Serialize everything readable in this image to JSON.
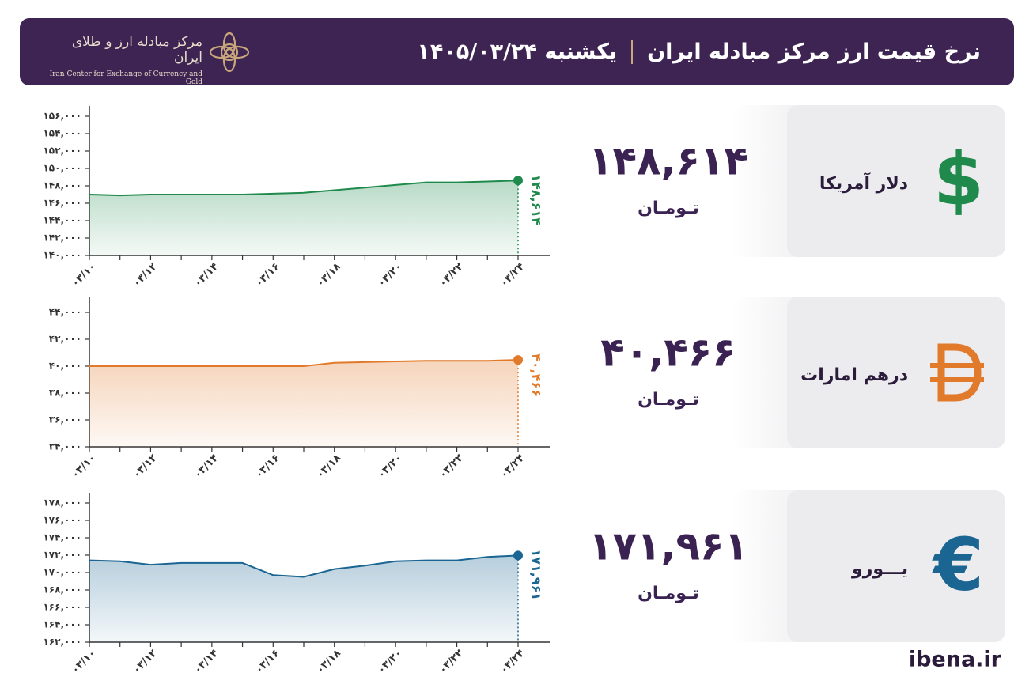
{
  "header": {
    "title": "نرخ قیمت ارز مرکز مبادله ایران",
    "date": "یکشنبه ۱۴۰۵/۰۳/۲۴",
    "logo_name": "مرکز مبادله ارز و طلای ایران",
    "logo_subtitle": "Iran Center for Exchange of Currency and Gold"
  },
  "footer": "ibena.ir",
  "chart_data": [
    {
      "type": "line",
      "name": "دلار آمریکا",
      "symbol": "$",
      "unit": "تـومـان",
      "color": "#1f8a4c",
      "categories": [
        "۰۳/۱۰",
        null,
        "۰۳/۱۲",
        null,
        "۰۳/۱۴",
        null,
        "۰۳/۱۶",
        null,
        "۰۳/۱۸",
        null,
        "۰۳/۲۰",
        null,
        "۰۳/۲۲",
        null,
        "۰۳/۲۴"
      ],
      "values": [
        147000,
        146900,
        147000,
        147000,
        147000,
        147000,
        147100,
        147200,
        147500,
        147800,
        148100,
        148400,
        148400,
        148500,
        148614
      ],
      "value_labels": [
        null,
        null,
        null,
        null,
        null,
        null,
        null,
        null,
        null,
        null,
        null,
        null,
        null,
        null,
        "۱۴۸,۶۱۴"
      ],
      "ylim": [
        140000,
        157000
      ],
      "yticks": [
        {
          "value": 140000,
          "label": "۱۴۰,۰۰۰"
        },
        {
          "value": 142000,
          "label": "۱۴۲,۰۰۰"
        },
        {
          "value": 144000,
          "label": "۱۴۴,۰۰۰"
        },
        {
          "value": 146000,
          "label": "۱۴۶,۰۰۰"
        },
        {
          "value": 148000,
          "label": "۱۴۸,۰۰۰"
        },
        {
          "value": 150000,
          "label": "۱۵۰,۰۰۰"
        },
        {
          "value": 152000,
          "label": "۱۵۲,۰۰۰"
        },
        {
          "value": 154000,
          "label": "۱۵۴,۰۰۰"
        },
        {
          "value": 156000,
          "label": "۱۵۶,۰۰۰"
        }
      ]
    },
    {
      "type": "line",
      "name": "درهم امارات",
      "unit": "تـومـان",
      "color": "#e17a2b",
      "categories": [
        "۰۳/۱۰",
        null,
        "۰۳/۱۲",
        null,
        "۰۳/۱۴",
        null,
        "۰۳/۱۶",
        null,
        "۰۳/۱۸",
        null,
        "۰۳/۲۰",
        null,
        "۰۳/۲۲",
        null,
        "۰۳/۲۴"
      ],
      "values": [
        40000,
        40000,
        40000,
        40000,
        40000,
        40000,
        40000,
        40000,
        40250,
        40300,
        40350,
        40400,
        40400,
        40400,
        40466
      ],
      "value_labels": [
        null,
        null,
        null,
        null,
        null,
        null,
        null,
        null,
        null,
        null,
        null,
        null,
        null,
        null,
        "۴۰,۴۶۶"
      ],
      "ylim": [
        34000,
        45000
      ],
      "yticks": [
        {
          "value": 34000,
          "label": "۳۴,۰۰۰"
        },
        {
          "value": 36000,
          "label": "۳۶,۰۰۰"
        },
        {
          "value": 38000,
          "label": "۳۸,۰۰۰"
        },
        {
          "value": 40000,
          "label": "۴۰,۰۰۰"
        },
        {
          "value": 42000,
          "label": "۴۲,۰۰۰"
        },
        {
          "value": 44000,
          "label": "۴۴,۰۰۰"
        }
      ]
    },
    {
      "type": "line",
      "name": "یـــورو",
      "symbol": "€",
      "unit": "تـومـان",
      "color": "#1b6592",
      "categories": [
        "۰۳/۱۰",
        null,
        "۰۳/۱۲",
        null,
        "۰۳/۱۴",
        null,
        "۰۳/۱۶",
        null,
        "۰۳/۱۸",
        null,
        "۰۳/۲۰",
        null,
        "۰۳/۲۲",
        null,
        "۰۳/۲۴"
      ],
      "values": [
        171400,
        171300,
        170900,
        171100,
        171100,
        171100,
        169700,
        169500,
        170400,
        170800,
        171300,
        171400,
        171400,
        171800,
        171961
      ],
      "value_labels": [
        null,
        null,
        null,
        null,
        null,
        null,
        null,
        null,
        null,
        null,
        null,
        null,
        null,
        null,
        "۱۷۱,۹۶۱"
      ],
      "ylim": [
        162000,
        179000
      ],
      "yticks": [
        {
          "value": 162000,
          "label": "۱۶۲,۰۰۰"
        },
        {
          "value": 164000,
          "label": "۱۶۴,۰۰۰"
        },
        {
          "value": 166000,
          "label": "۱۶۶,۰۰۰"
        },
        {
          "value": 168000,
          "label": "۱۶۸,۰۰۰"
        },
        {
          "value": 170000,
          "label": "۱۷۰,۰۰۰"
        },
        {
          "value": 172000,
          "label": "۱۷۲,۰۰۰"
        },
        {
          "value": 174000,
          "label": "۱۷۴,۰۰۰"
        },
        {
          "value": 176000,
          "label": "۱۷۶,۰۰۰"
        },
        {
          "value": 178000,
          "label": "۱۷۸,۰۰۰"
        }
      ]
    }
  ]
}
